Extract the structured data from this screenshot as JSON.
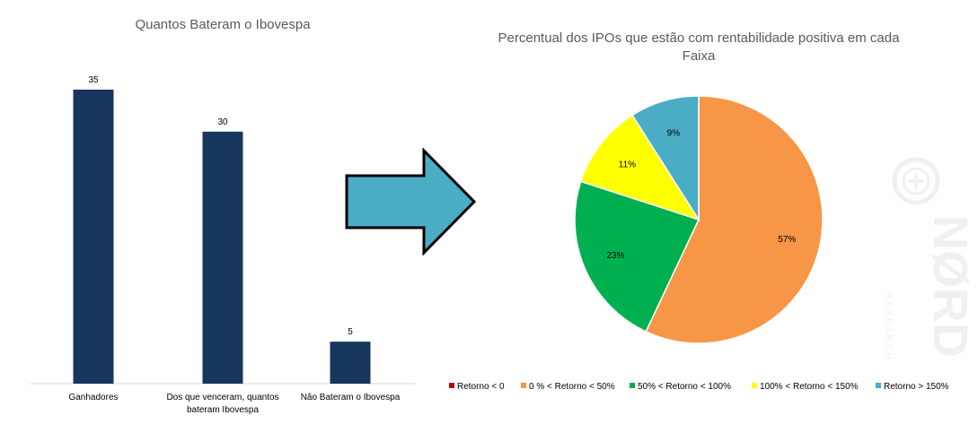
{
  "chart_data": [
    {
      "type": "bar",
      "title": "Quantos Bateram o Ibovespa",
      "categories": [
        [
          "Ganhadores"
        ],
        [
          "Dos que venceram, quantos",
          "bateram Ibovespa"
        ],
        [
          "Não Bateram o Ibovespa"
        ]
      ],
      "values": [
        35,
        30,
        5
      ],
      "ylim": [
        0,
        35
      ],
      "grid": false,
      "colors": {
        "bar": "#17365d"
      }
    },
    {
      "type": "pie",
      "title": [
        "Percentual dos IPOs que estão com rentabilidade positiva em cada",
        "Faixa"
      ],
      "legend_position": "bottom",
      "slices": [
        {
          "label": "Retorno < 0",
          "value": 0,
          "display": "",
          "color": "#c00000"
        },
        {
          "label": "0 % <  Retorno < 50%",
          "value": 57,
          "display": "57%",
          "color": "#f79646"
        },
        {
          "label": "50%  <  Retorno < 100%",
          "value": 23,
          "display": "23%",
          "color": "#00b050"
        },
        {
          "label": "100%  < Retorno < 150%",
          "value": 11,
          "display": "11%",
          "color": "#ffff00"
        },
        {
          "label": "Retorno > 150%",
          "value": 9,
          "display": "9%",
          "color": "#4bacc6"
        }
      ]
    }
  ],
  "arrow": {
    "color": "#4bacc6",
    "icon": "right-arrow-icon"
  },
  "watermark": {
    "text": "NØRD",
    "subtext": "RESEARCH",
    "icon": "compass-logo-icon"
  }
}
